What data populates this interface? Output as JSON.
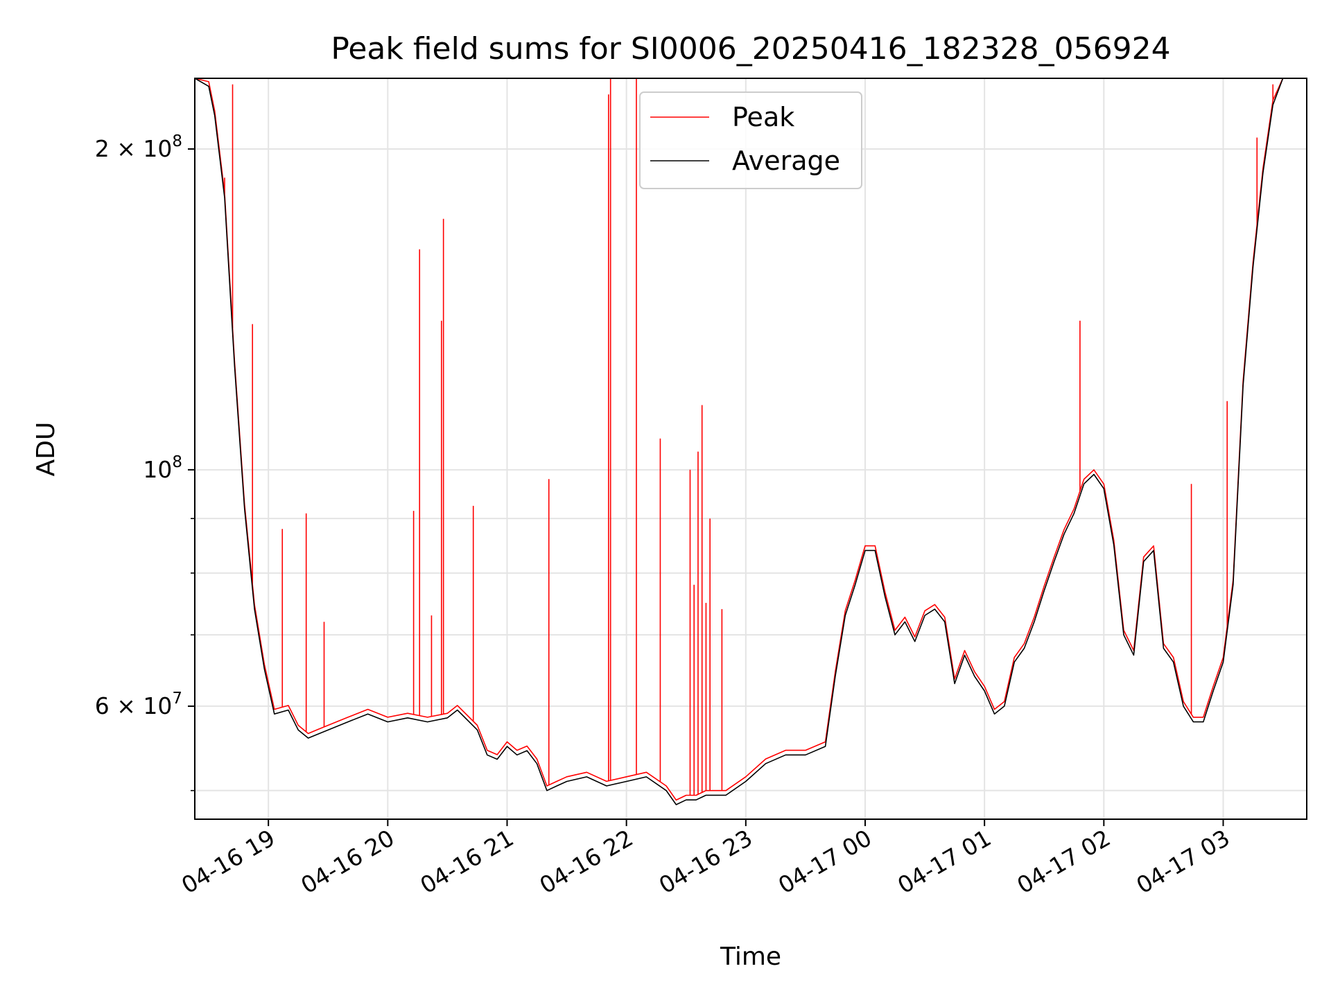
{
  "chart_data": {
    "type": "line",
    "title": "Peak field sums for SI0006_20250416_182328_056924",
    "xlabel": "Time",
    "ylabel": "ADU",
    "yscale": "log",
    "grid": true,
    "legend_position": "top-center",
    "xlim": [
      "2025-04-16 18:23",
      "2025-04-17 03:42"
    ],
    "ylim": [
      47000000,
      233000000
    ],
    "x_ticks": [
      {
        "t": "2025-04-16 19:00",
        "label": "04-16 19"
      },
      {
        "t": "2025-04-16 20:00",
        "label": "04-16 20"
      },
      {
        "t": "2025-04-16 21:00",
        "label": "04-16 21"
      },
      {
        "t": "2025-04-16 22:00",
        "label": "04-16 22"
      },
      {
        "t": "2025-04-16 23:00",
        "label": "04-16 23"
      },
      {
        "t": "2025-04-17 00:00",
        "label": "04-17 00"
      },
      {
        "t": "2025-04-17 01:00",
        "label": "04-17 01"
      },
      {
        "t": "2025-04-17 02:00",
        "label": "04-17 02"
      },
      {
        "t": "2025-04-17 03:00",
        "label": "04-17 03"
      }
    ],
    "y_major_ticks": [
      {
        "v": 60000000,
        "mant": "6",
        "exp": "7"
      },
      {
        "v": 100000000,
        "mant": "",
        "exp": "8"
      },
      {
        "v": 200000000,
        "mant": "2",
        "exp": "8"
      }
    ],
    "y_minor_ticks": [
      50000000,
      70000000,
      80000000,
      90000000
    ],
    "series": [
      {
        "name": "Average",
        "color": "#000000",
        "x": [
          "2025-04-16 18:23",
          "2025-04-16 18:30",
          "2025-04-16 18:33",
          "2025-04-16 18:38",
          "2025-04-16 18:43",
          "2025-04-16 18:48",
          "2025-04-16 18:53",
          "2025-04-16 18:58",
          "2025-04-16 19:03",
          "2025-04-16 19:10",
          "2025-04-16 19:15",
          "2025-04-16 19:20",
          "2025-04-16 19:25",
          "2025-04-16 19:30",
          "2025-04-16 19:40",
          "2025-04-16 19:50",
          "2025-04-16 20:00",
          "2025-04-16 20:10",
          "2025-04-16 20:20",
          "2025-04-16 20:30",
          "2025-04-16 20:35",
          "2025-04-16 20:45",
          "2025-04-16 20:50",
          "2025-04-16 20:55",
          "2025-04-16 21:00",
          "2025-04-16 21:05",
          "2025-04-16 21:10",
          "2025-04-16 21:15",
          "2025-04-16 21:20",
          "2025-04-16 21:25",
          "2025-04-16 21:30",
          "2025-04-16 21:40",
          "2025-04-16 21:50",
          "2025-04-16 22:00",
          "2025-04-16 22:10",
          "2025-04-16 22:20",
          "2025-04-16 22:25",
          "2025-04-16 22:30",
          "2025-04-16 22:35",
          "2025-04-16 22:40",
          "2025-04-16 22:50",
          "2025-04-16 23:00",
          "2025-04-16 23:10",
          "2025-04-16 23:20",
          "2025-04-16 23:30",
          "2025-04-16 23:40",
          "2025-04-16 23:45",
          "2025-04-16 23:50",
          "2025-04-16 23:55",
          "2025-04-17 00:00",
          "2025-04-17 00:05",
          "2025-04-17 00:10",
          "2025-04-17 00:15",
          "2025-04-17 00:20",
          "2025-04-17 00:25",
          "2025-04-17 00:30",
          "2025-04-17 00:35",
          "2025-04-17 00:40",
          "2025-04-17 00:45",
          "2025-04-17 00:50",
          "2025-04-17 00:55",
          "2025-04-17 01:00",
          "2025-04-17 01:05",
          "2025-04-17 01:10",
          "2025-04-17 01:15",
          "2025-04-17 01:20",
          "2025-04-17 01:25",
          "2025-04-17 01:30",
          "2025-04-17 01:35",
          "2025-04-17 01:40",
          "2025-04-17 01:45",
          "2025-04-17 01:50",
          "2025-04-17 01:55",
          "2025-04-17 02:00",
          "2025-04-17 02:05",
          "2025-04-17 02:10",
          "2025-04-17 02:15",
          "2025-04-17 02:20",
          "2025-04-17 02:25",
          "2025-04-17 02:30",
          "2025-04-17 02:35",
          "2025-04-17 02:40",
          "2025-04-17 02:45",
          "2025-04-17 02:50",
          "2025-04-17 02:55",
          "2025-04-17 03:00",
          "2025-04-17 03:05",
          "2025-04-17 03:10",
          "2025-04-17 03:15",
          "2025-04-17 03:20",
          "2025-04-17 03:25",
          "2025-04-17 03:30",
          "2025-04-17 03:35",
          "2025-04-17 03:42"
        ],
        "values": [
          233000000,
          229000000,
          215000000,
          180000000,
          125000000,
          92000000,
          74000000,
          65000000,
          59000000,
          59500000,
          57000000,
          56000000,
          56500000,
          57000000,
          58000000,
          59000000,
          58000000,
          58500000,
          58000000,
          58500000,
          59500000,
          57000000,
          54000000,
          53500000,
          55000000,
          54000000,
          54500000,
          53000000,
          50000000,
          50500000,
          51000000,
          51500000,
          50500000,
          51000000,
          51500000,
          50000000,
          48500000,
          49000000,
          49000000,
          49500000,
          49500000,
          51000000,
          53000000,
          54000000,
          54000000,
          55000000,
          64000000,
          73000000,
          78000000,
          84000000,
          84000000,
          76000000,
          70000000,
          72000000,
          69000000,
          73000000,
          74000000,
          72000000,
          63000000,
          67000000,
          64000000,
          62000000,
          59000000,
          60000000,
          66000000,
          68000000,
          72000000,
          77000000,
          82000000,
          87000000,
          91000000,
          97000000,
          99000000,
          96000000,
          85000000,
          70000000,
          67000000,
          82000000,
          84000000,
          68000000,
          66000000,
          60000000,
          58000000,
          58000000,
          62000000,
          66000000,
          78000000,
          120000000,
          155000000,
          190000000,
          220000000,
          233000000,
          233000000,
          233000000
        ]
      },
      {
        "name": "Peak",
        "color": "#ff0000",
        "offset_ratio": 1.01,
        "spikes": [
          {
            "t": "2025-04-16 18:38",
            "v": 188000000
          },
          {
            "t": "2025-04-16 18:42",
            "v": 230000000
          },
          {
            "t": "2025-04-16 18:52",
            "v": 137000000
          },
          {
            "t": "2025-04-16 19:07",
            "v": 88000000
          },
          {
            "t": "2025-04-16 19:19",
            "v": 91000000
          },
          {
            "t": "2025-04-16 19:28",
            "v": 72000000
          },
          {
            "t": "2025-04-16 19:34",
            "v": 58000000
          },
          {
            "t": "2025-04-16 20:13",
            "v": 91500000
          },
          {
            "t": "2025-04-16 20:16",
            "v": 161000000
          },
          {
            "t": "2025-04-16 20:22",
            "v": 73000000
          },
          {
            "t": "2025-04-16 20:27",
            "v": 138000000
          },
          {
            "t": "2025-04-16 20:28",
            "v": 172000000
          },
          {
            "t": "2025-04-16 20:43",
            "v": 92500000
          },
          {
            "t": "2025-04-16 21:21",
            "v": 98000000
          },
          {
            "t": "2025-04-16 21:51",
            "v": 225000000
          },
          {
            "t": "2025-04-16 21:52",
            "v": 233000000
          },
          {
            "t": "2025-04-16 22:05",
            "v": 233000000
          },
          {
            "t": "2025-04-16 22:17",
            "v": 107000000
          },
          {
            "t": "2025-04-16 22:32",
            "v": 100000000
          },
          {
            "t": "2025-04-16 22:34",
            "v": 78000000
          },
          {
            "t": "2025-04-16 22:36",
            "v": 104000000
          },
          {
            "t": "2025-04-16 22:38",
            "v": 115000000
          },
          {
            "t": "2025-04-16 22:40",
            "v": 75000000
          },
          {
            "t": "2025-04-16 22:42",
            "v": 90000000
          },
          {
            "t": "2025-04-16 22:48",
            "v": 74000000
          },
          {
            "t": "2025-04-17 01:48",
            "v": 138000000
          },
          {
            "t": "2025-04-17 02:44",
            "v": 97000000
          },
          {
            "t": "2025-04-17 03:02",
            "v": 116000000
          },
          {
            "t": "2025-04-17 03:17",
            "v": 205000000
          },
          {
            "t": "2025-04-17 03:25",
            "v": 230000000
          }
        ]
      }
    ]
  }
}
